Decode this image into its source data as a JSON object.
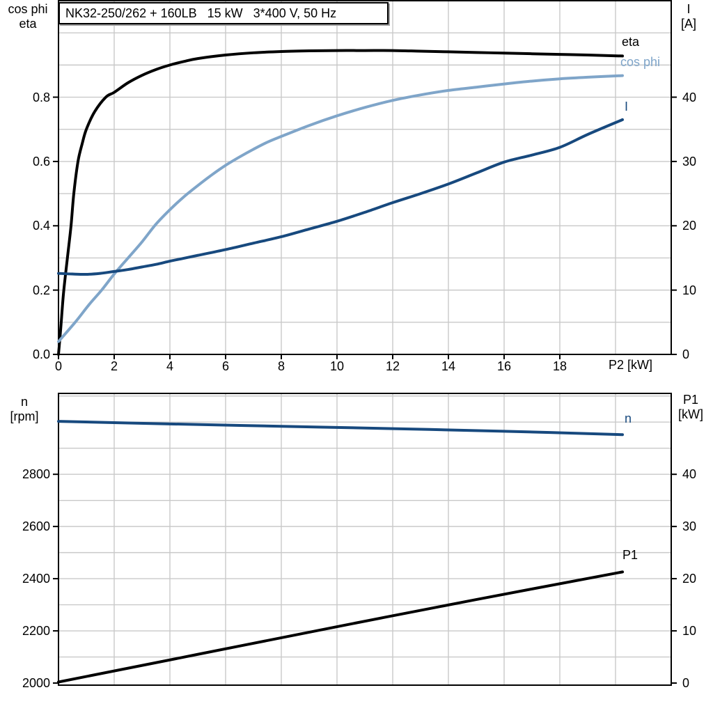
{
  "title_box": {
    "text": "NK32-250/262 + 160LB   15 kW   3*400 V, 50 Hz"
  },
  "colors": {
    "black": "#000000",
    "light_blue": "#7fa5c9",
    "dark_blue": "#17497e",
    "grid": "#c9c9c9",
    "frame": "#000000",
    "background": "#ffffff"
  },
  "chart_data": [
    {
      "id": "motor-efficiency-current-chart",
      "type": "line",
      "title": "NK32-250/262 + 160LB   15 kW   3*400 V, 50 Hz",
      "grid": true,
      "x_axis": {
        "label": "P2 [kW]",
        "min": 0,
        "max": 22,
        "gridline_step": 2,
        "ticks": [
          0,
          2,
          4,
          6,
          8,
          10,
          12,
          14,
          16,
          18
        ],
        "tick_decimals": 0
      },
      "left_axis": {
        "label_lines": [
          "cos phi",
          "eta"
        ],
        "min": 0,
        "max": 1.1,
        "gridline_step": 0.1,
        "ticks": [
          0.0,
          0.2,
          0.4,
          0.6,
          0.8
        ],
        "tick_decimals": 1
      },
      "right_axis": {
        "label_lines": [
          "I",
          "[A]"
        ],
        "min": 0,
        "max": 55,
        "gridline_step": 5,
        "ticks": [
          0,
          10,
          20,
          30,
          40
        ],
        "tick_decimals": 0
      },
      "series": [
        {
          "label": "eta",
          "axis": "left",
          "color_key": "black",
          "points": [
            [
              0,
              0
            ],
            [
              0.08,
              0.08
            ],
            [
              0.18,
              0.19
            ],
            [
              0.32,
              0.3
            ],
            [
              0.45,
              0.4
            ],
            [
              0.55,
              0.5
            ],
            [
              0.7,
              0.6
            ],
            [
              0.85,
              0.655
            ],
            [
              1.0,
              0.7
            ],
            [
              1.3,
              0.755
            ],
            [
              1.7,
              0.8
            ],
            [
              2.0,
              0.815
            ],
            [
              2.5,
              0.845
            ],
            [
              3.0,
              0.868
            ],
            [
              3.5,
              0.886
            ],
            [
              4.0,
              0.9
            ],
            [
              4.5,
              0.911
            ],
            [
              5.0,
              0.92
            ],
            [
              6.0,
              0.931
            ],
            [
              7.0,
              0.938
            ],
            [
              8.0,
              0.942
            ],
            [
              9.0,
              0.944
            ],
            [
              10.0,
              0.945
            ],
            [
              11.0,
              0.945
            ],
            [
              12.0,
              0.945
            ],
            [
              13.0,
              0.943
            ],
            [
              14.0,
              0.941
            ],
            [
              15.0,
              0.939
            ],
            [
              16.0,
              0.937
            ],
            [
              17.0,
              0.935
            ],
            [
              18.0,
              0.933
            ],
            [
              19.0,
              0.931
            ],
            [
              20.25,
              0.928
            ]
          ]
        },
        {
          "label": "cos phi",
          "axis": "left",
          "color_key": "light_blue",
          "points": [
            [
              0,
              0.04
            ],
            [
              0.6,
              0.1
            ],
            [
              1.1,
              0.155
            ],
            [
              1.55,
              0.2
            ],
            [
              2.0,
              0.25
            ],
            [
              2.5,
              0.3
            ],
            [
              3.0,
              0.35
            ],
            [
              3.5,
              0.405
            ],
            [
              4.0,
              0.45
            ],
            [
              4.5,
              0.49
            ],
            [
              5.0,
              0.525
            ],
            [
              5.5,
              0.558
            ],
            [
              6.0,
              0.588
            ],
            [
              6.5,
              0.614
            ],
            [
              7.0,
              0.638
            ],
            [
              7.5,
              0.66
            ],
            [
              8.0,
              0.678
            ],
            [
              9.0,
              0.712
            ],
            [
              10.0,
              0.742
            ],
            [
              11.0,
              0.768
            ],
            [
              12.0,
              0.79
            ],
            [
              13.0,
              0.807
            ],
            [
              14.0,
              0.821
            ],
            [
              15.0,
              0.831
            ],
            [
              16.0,
              0.841
            ],
            [
              17.0,
              0.85
            ],
            [
              18.0,
              0.857
            ],
            [
              19.0,
              0.862
            ],
            [
              20.25,
              0.867
            ]
          ]
        },
        {
          "label": "I",
          "axis": "right",
          "color_key": "dark_blue",
          "points": [
            [
              0,
              12.6
            ],
            [
              0.5,
              12.5
            ],
            [
              1.0,
              12.45
            ],
            [
              1.5,
              12.6
            ],
            [
              2.0,
              12.9
            ],
            [
              2.5,
              13.2
            ],
            [
              3.0,
              13.6
            ],
            [
              3.5,
              14.0
            ],
            [
              4.0,
              14.5
            ],
            [
              4.5,
              14.95
            ],
            [
              5.0,
              15.4
            ],
            [
              6.0,
              16.3
            ],
            [
              7.0,
              17.3
            ],
            [
              8.0,
              18.3
            ],
            [
              9.0,
              19.5
            ],
            [
              10.0,
              20.7
            ],
            [
              11.0,
              22.1
            ],
            [
              12.0,
              23.6
            ],
            [
              13.0,
              25.0
            ],
            [
              14.0,
              26.5
            ],
            [
              15.0,
              28.2
            ],
            [
              16.0,
              29.9
            ],
            [
              17.0,
              31.0
            ],
            [
              18.0,
              32.2
            ],
            [
              19.0,
              34.2
            ],
            [
              20.25,
              36.5
            ]
          ]
        }
      ]
    },
    {
      "id": "motor-speed-power-chart",
      "type": "line",
      "title": "",
      "grid": true,
      "x_axis": {
        "label": "",
        "min": 0,
        "max": 22,
        "gridline_step": 2,
        "ticks": [],
        "tick_decimals": 0
      },
      "left_axis": {
        "label_lines": [
          "n",
          "[rpm]"
        ],
        "min": 2000,
        "max": 3110,
        "gridline_step": 100,
        "ticks": [
          2000,
          2200,
          2400,
          2600,
          2800
        ],
        "tick_decimals": 0
      },
      "right_axis": {
        "label_lines": [
          "P1",
          "[kW]"
        ],
        "min": 0,
        "max": 55.5,
        "gridline_step": 5,
        "ticks": [
          0,
          10,
          20,
          30,
          40
        ],
        "tick_decimals": 0
      },
      "series": [
        {
          "label": "n",
          "axis": "left",
          "color_key": "dark_blue",
          "points": [
            [
              0,
              3003
            ],
            [
              4,
              2993
            ],
            [
              8,
              2984
            ],
            [
              12,
              2975
            ],
            [
              16,
              2965
            ],
            [
              20.25,
              2952
            ]
          ]
        },
        {
          "label": "P1",
          "axis": "right",
          "color_key": "black",
          "points": [
            [
              0,
              0.2
            ],
            [
              5,
              5.5
            ],
            [
              10,
              10.8
            ],
            [
              15,
              16.0
            ],
            [
              20.25,
              21.3
            ]
          ]
        }
      ]
    }
  ]
}
